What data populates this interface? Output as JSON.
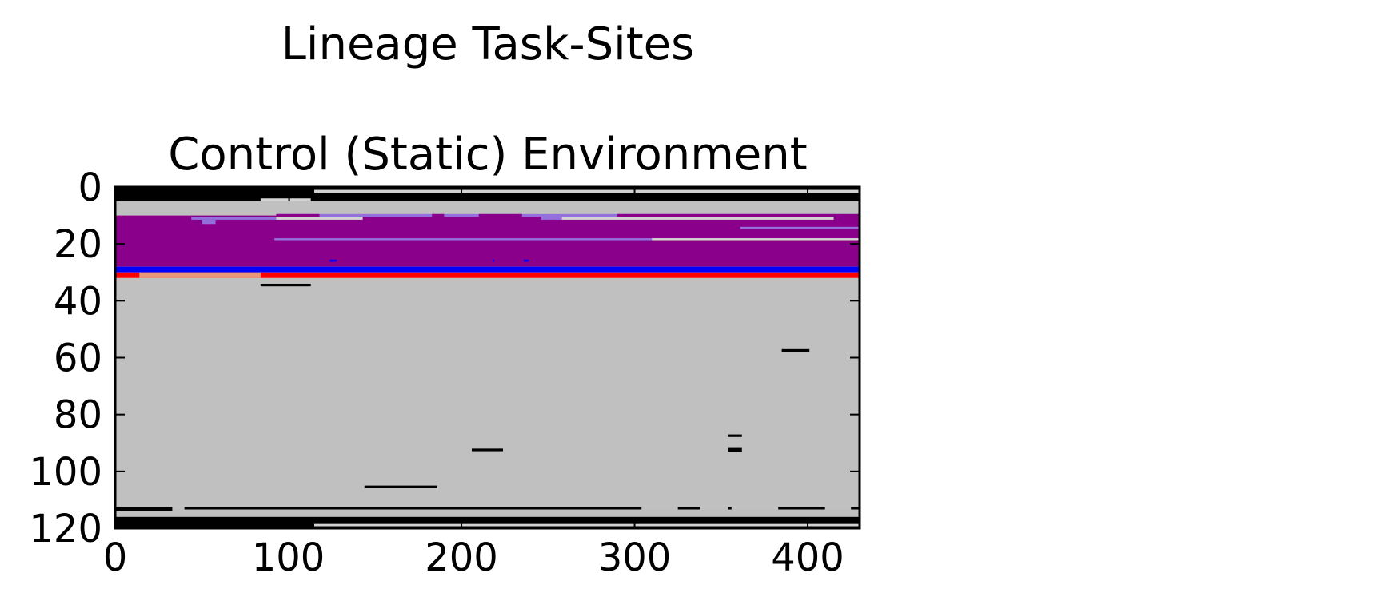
{
  "chart_data": {
    "type": "heatmap",
    "title": "Lineage Task-Sites",
    "subtitle": "Control (Static) Environment",
    "xlabel": "",
    "ylabel": "",
    "xlim": [
      0,
      430
    ],
    "ylim": [
      120,
      0
    ],
    "y_inverted": true,
    "x_ticks": [
      "0",
      "100",
      "200",
      "300",
      "400"
    ],
    "y_ticks": [
      "0",
      "20",
      "40",
      "60",
      "80",
      "100",
      "120"
    ],
    "grid": false,
    "legend": "none",
    "colors": {
      "background": "#c0c0c0",
      "black": "#000000",
      "purple": "#8b008b",
      "lavender": "#9370db",
      "blue": "#0000ff",
      "red": "#ff0000",
      "salmon": "#e9967a",
      "light": "#d3d3d3"
    },
    "bands": [
      {
        "x0": 0,
        "x1": 430,
        "y0": 0,
        "y1": 5,
        "color": "black",
        "note": "top black band"
      },
      {
        "x0": 0,
        "x1": 430,
        "y0": 5,
        "y1": 10,
        "color": "background"
      },
      {
        "x0": 0,
        "x1": 430,
        "y0": 10,
        "y1": 28,
        "color": "purple"
      },
      {
        "x0": 0,
        "x1": 430,
        "y0": 28,
        "y1": 30,
        "color": "blue"
      },
      {
        "x0": 0,
        "x1": 430,
        "y0": 30,
        "y1": 32,
        "color": "red"
      },
      {
        "x0": 14,
        "x1": 84,
        "y0": 30,
        "y1": 32,
        "color": "salmon"
      },
      {
        "x0": 0,
        "x1": 430,
        "y0": 32,
        "y1": 112,
        "color": "background"
      },
      {
        "x0": 0,
        "x1": 430,
        "y0": 112,
        "y1": 116,
        "color": "background"
      },
      {
        "x0": 0,
        "x1": 430,
        "y0": 116,
        "y1": 120,
        "color": "black"
      }
    ],
    "segments": [
      {
        "x0": 84,
        "x1": 100,
        "y": 4,
        "h": 1,
        "color": "light"
      },
      {
        "x0": 101,
        "x1": 113,
        "y": 4,
        "h": 1,
        "color": "light"
      },
      {
        "x0": 115,
        "x1": 430,
        "y": 1,
        "h": 1,
        "color": "light"
      },
      {
        "x0": 94,
        "x1": 430,
        "y": 9.5,
        "h": 1,
        "color": "lavender"
      },
      {
        "x0": 93,
        "x1": 118,
        "y": 9.5,
        "h": 1,
        "color": "purple"
      },
      {
        "x0": 183,
        "x1": 190,
        "y": 9.5,
        "h": 1,
        "color": "purple"
      },
      {
        "x0": 210,
        "x1": 235,
        "y": 9.5,
        "h": 1,
        "color": "purple"
      },
      {
        "x0": 290,
        "x1": 430,
        "y": 9.5,
        "h": 1,
        "color": "purple"
      },
      {
        "x0": 44,
        "x1": 93,
        "y": 10.5,
        "h": 1,
        "color": "lavender"
      },
      {
        "x0": 50,
        "x1": 58,
        "y": 11.5,
        "h": 1.5,
        "color": "lavender"
      },
      {
        "x0": 93,
        "x1": 143,
        "y": 10.5,
        "h": 1,
        "color": "light"
      },
      {
        "x0": 246,
        "x1": 258,
        "y": 10.5,
        "h": 1,
        "color": "lavender"
      },
      {
        "x0": 258,
        "x1": 415,
        "y": 10.5,
        "h": 1,
        "color": "light"
      },
      {
        "x0": 361,
        "x1": 430,
        "y": 14,
        "h": 0.7,
        "color": "lavender"
      },
      {
        "x0": 92,
        "x1": 310,
        "y": 18,
        "h": 0.7,
        "color": "lavender"
      },
      {
        "x0": 310,
        "x1": 430,
        "y": 18,
        "h": 0.7,
        "color": "light"
      },
      {
        "x0": 124,
        "x1": 128,
        "y": 25.5,
        "h": 0.8,
        "color": "blue"
      },
      {
        "x0": 218,
        "x1": 219,
        "y": 25.5,
        "h": 0.8,
        "color": "blue"
      },
      {
        "x0": 236,
        "x1": 239,
        "y": 25.5,
        "h": 0.8,
        "color": "blue"
      },
      {
        "x0": 84,
        "x1": 113,
        "y": 34,
        "h": 0.9,
        "color": "black"
      },
      {
        "x0": 385,
        "x1": 401,
        "y": 57,
        "h": 0.9,
        "color": "black"
      },
      {
        "x0": 354,
        "x1": 362,
        "y": 87,
        "h": 0.9,
        "color": "black"
      },
      {
        "x0": 354,
        "x1": 362,
        "y": 91.5,
        "h": 1.6,
        "color": "black"
      },
      {
        "x0": 206,
        "x1": 224,
        "y": 92,
        "h": 0.9,
        "color": "black"
      },
      {
        "x0": 144,
        "x1": 186,
        "y": 105,
        "h": 0.9,
        "color": "black"
      },
      {
        "x0": 0,
        "x1": 33,
        "y": 112.5,
        "h": 1.5,
        "color": "black"
      },
      {
        "x0": 40,
        "x1": 304,
        "y": 112.5,
        "h": 0.9,
        "color": "black"
      },
      {
        "x0": 325,
        "x1": 338,
        "y": 112.5,
        "h": 0.9,
        "color": "black"
      },
      {
        "x0": 354,
        "x1": 356,
        "y": 112.5,
        "h": 0.9,
        "color": "black"
      },
      {
        "x0": 383,
        "x1": 410,
        "y": 112.5,
        "h": 0.9,
        "color": "black"
      },
      {
        "x0": 425,
        "x1": 430,
        "y": 112.5,
        "h": 0.9,
        "color": "black"
      },
      {
        "x0": 115,
        "x1": 430,
        "y": 118.5,
        "h": 0.8,
        "color": "light"
      }
    ]
  }
}
